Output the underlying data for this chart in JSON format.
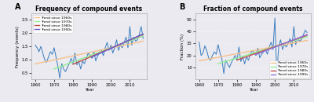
{
  "title_A": "Frequency of compound events",
  "title_B": "Fraction of compound events",
  "ylabel_A": "Frequency (events)",
  "ylabel_B": "Fraction (%)",
  "xlabel": "Year",
  "label_A": "A",
  "label_B": "B",
  "years": [
    1960,
    1961,
    1962,
    1963,
    1964,
    1965,
    1966,
    1967,
    1968,
    1969,
    1970,
    1971,
    1972,
    1973,
    1974,
    1975,
    1976,
    1977,
    1978,
    1979,
    1980,
    1981,
    1982,
    1983,
    1984,
    1985,
    1986,
    1987,
    1988,
    1989,
    1990,
    1991,
    1992,
    1993,
    1994,
    1995,
    1996,
    1997,
    1998,
    1999,
    2000,
    2001,
    2002,
    2003,
    2004,
    2005,
    2006,
    2007,
    2008,
    2009,
    2010,
    2011,
    2012,
    2013,
    2014,
    2015,
    2016,
    2017
  ],
  "freq": [
    1.55,
    1.45,
    1.3,
    1.5,
    1.25,
    1.0,
    0.9,
    1.1,
    1.3,
    1.2,
    1.45,
    1.1,
    0.75,
    0.3,
    0.85,
    0.65,
    0.55,
    0.7,
    0.85,
    1.05,
    0.85,
    1.25,
    0.8,
    0.95,
    0.65,
    0.95,
    0.85,
    1.05,
    1.25,
    1.15,
    1.05,
    1.3,
    0.95,
    1.15,
    1.25,
    1.35,
    1.15,
    1.45,
    1.65,
    1.35,
    1.55,
    1.25,
    1.45,
    1.75,
    1.35,
    1.55,
    1.45,
    1.65,
    1.85,
    1.45,
    2.25,
    1.55,
    1.85,
    1.7,
    1.75,
    1.95,
    2.25,
    1.8
  ],
  "frac": [
    31,
    20,
    22,
    28,
    24,
    18,
    16,
    20,
    23,
    21,
    29,
    22,
    17,
    5,
    16,
    13,
    10,
    14,
    17,
    20,
    16,
    27,
    15,
    19,
    13,
    19,
    16,
    21,
    24,
    22,
    20,
    26,
    18,
    21,
    23,
    25,
    21,
    27,
    31,
    25,
    51,
    5,
    27,
    33,
    25,
    29,
    27,
    30,
    34,
    27,
    44,
    29,
    34,
    32,
    33,
    37,
    41,
    39
  ],
  "trend_colors_A": [
    "#f5c08a",
    "#90ee90",
    "#c05050",
    "#6a5acd"
  ],
  "trend_colors_B": [
    "#f5c08a",
    "#90ee90",
    "#c05050",
    "#9370db"
  ],
  "trend_labels": [
    "Trend since 1960s",
    "Trend since 1970s",
    "Trend since 1980s",
    "Trend since 1990s"
  ],
  "trend_starts": [
    1960,
    1970,
    1980,
    1990
  ],
  "line_color": "#3a7cbf",
  "bg_color": "#eaeaf0",
  "ylim_A": [
    0.25,
    2.75
  ],
  "ylim_B": [
    0,
    55
  ],
  "yticks_A": [
    0.5,
    1.0,
    1.5,
    2.0,
    2.5
  ],
  "yticks_B": [
    10,
    20,
    30,
    40,
    50
  ],
  "xlim": [
    1958,
    2019
  ],
  "xticks": [
    1960,
    1970,
    1980,
    1990,
    2000,
    2010
  ]
}
